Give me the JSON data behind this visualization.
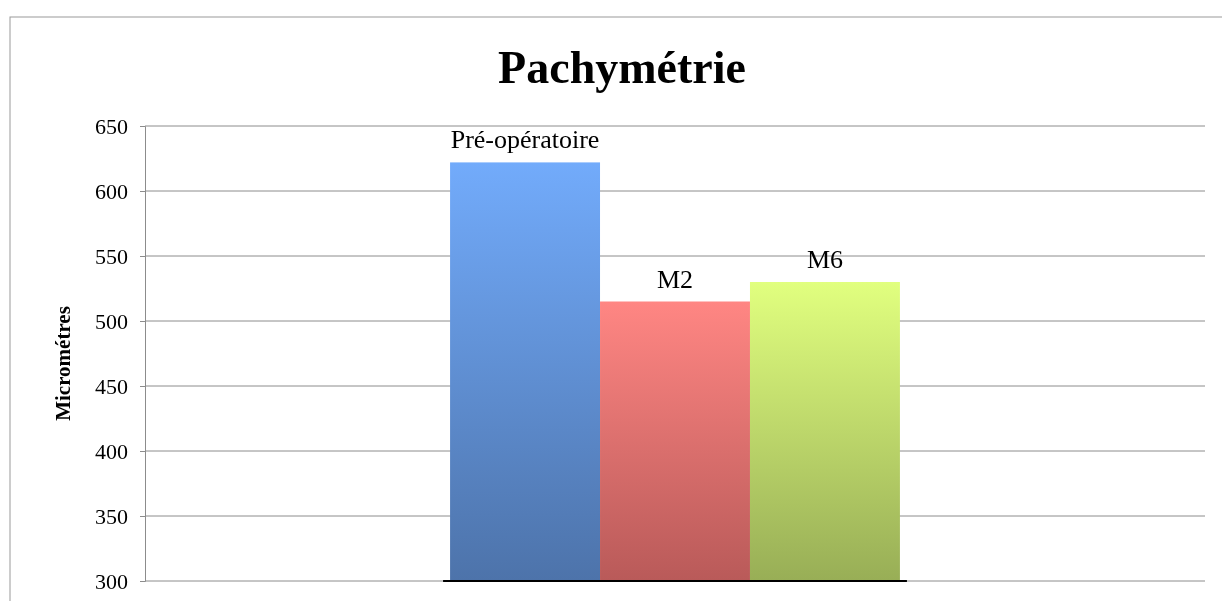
{
  "chart_data": {
    "type": "bar",
    "title": "Pachymétrie",
    "ylabel": "Micrométres",
    "categories": [
      null
    ],
    "series": [
      {
        "name": "Pré-opératoire",
        "color": "#5f8fd2",
        "values": [
          622
        ]
      },
      {
        "name": "M2",
        "color": "#e5706e",
        "values": [
          515
        ]
      },
      {
        "name": "M6",
        "color": "#bcd86a",
        "values": [
          530
        ]
      }
    ],
    "ylim": [
      300,
      650
    ],
    "yticks": [
      300,
      350,
      400,
      450,
      500,
      550,
      600,
      650
    ],
    "grid": "y",
    "legend": false
  }
}
